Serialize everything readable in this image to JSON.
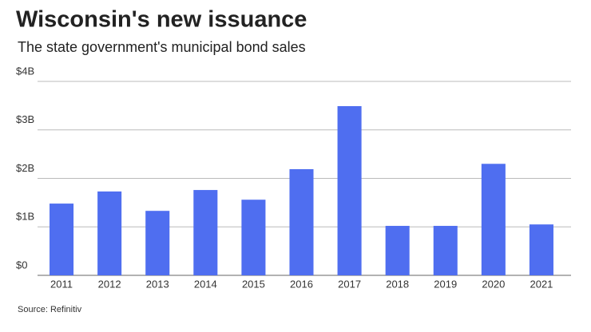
{
  "chart_data": {
    "type": "bar",
    "title": "Wisconsin's new issuance",
    "subtitle": "The state government's municipal bond sales",
    "source": "Source: Refinitiv",
    "categories": [
      "2011",
      "2012",
      "2013",
      "2014",
      "2015",
      "2016",
      "2017",
      "2018",
      "2019",
      "2020",
      "2021"
    ],
    "values": [
      1.48,
      1.73,
      1.33,
      1.76,
      1.56,
      2.19,
      3.49,
      1.02,
      1.02,
      2.3,
      1.05
    ],
    "color": "#4f6ef0",
    "ylim": [
      0,
      4
    ],
    "yticks": [
      {
        "value": 0,
        "label": "$0"
      },
      {
        "value": 1,
        "label": "$1B"
      },
      {
        "value": 2,
        "label": "$2B"
      },
      {
        "value": 3,
        "label": "$3B"
      },
      {
        "value": 4,
        "label": "$4B"
      }
    ],
    "grid": true
  }
}
